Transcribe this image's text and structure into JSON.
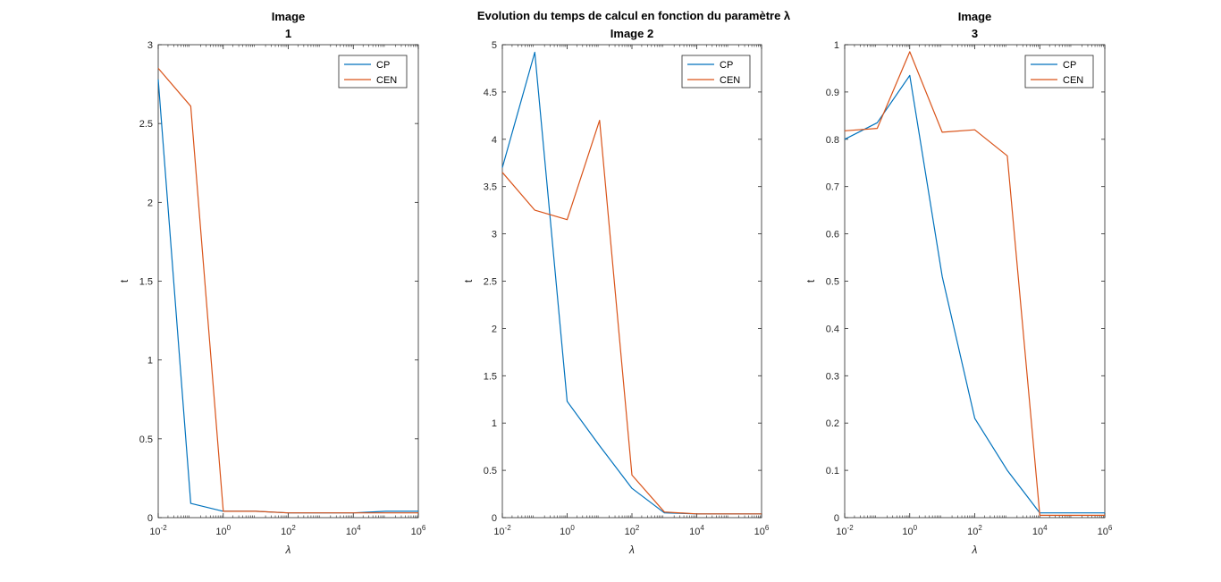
{
  "figure": {
    "suptitle": "Evolution du temps de calcul en fonction du paramètre λ",
    "colors": {
      "CP": "#0072BD",
      "CEN": "#D95319"
    }
  },
  "chart_data": [
    {
      "type": "line",
      "title_lines": [
        "Image",
        "1"
      ],
      "xlabel": "λ",
      "ylabel": "t",
      "xscale": "log",
      "xlim": [
        0.01,
        1000000
      ],
      "ylim": [
        0,
        3
      ],
      "yticks": [
        0,
        0.5,
        1,
        1.5,
        2,
        2.5,
        3
      ],
      "ytick_labels": [
        "0",
        "0.5",
        "1",
        "1.5",
        "2",
        "2.5",
        "3"
      ],
      "xtick_labels": [
        {
          "base": "10",
          "exp": "-2"
        },
        {
          "base": "10",
          "exp": "0"
        },
        {
          "base": "10",
          "exp": "2"
        },
        {
          "base": "10",
          "exp": "4"
        },
        {
          "base": "10",
          "exp": "6"
        }
      ],
      "x": [
        0.01,
        0.1,
        1,
        10,
        100,
        1000,
        10000,
        100000,
        1000000
      ],
      "series": [
        {
          "name": "CP",
          "values": [
            2.78,
            0.09,
            0.04,
            0.04,
            0.03,
            0.03,
            0.03,
            0.04,
            0.04
          ]
        },
        {
          "name": "CEN",
          "values": [
            2.85,
            2.61,
            0.04,
            0.04,
            0.03,
            0.03,
            0.03,
            0.03,
            0.03
          ]
        }
      ],
      "legend": "top-right",
      "grid": false
    },
    {
      "type": "line",
      "title_lines": [
        "Image 2"
      ],
      "xlabel": "λ",
      "ylabel": "t",
      "xscale": "log",
      "xlim": [
        0.01,
        1000000
      ],
      "ylim": [
        0,
        5
      ],
      "yticks": [
        0,
        0.5,
        1,
        1.5,
        2,
        2.5,
        3,
        3.5,
        4,
        4.5,
        5
      ],
      "ytick_labels": [
        "0",
        "0.5",
        "1",
        "1.5",
        "2",
        "2.5",
        "3",
        "3.5",
        "4",
        "4.5",
        "5"
      ],
      "xtick_labels": [
        {
          "base": "10",
          "exp": "-2"
        },
        {
          "base": "10",
          "exp": "0"
        },
        {
          "base": "10",
          "exp": "2"
        },
        {
          "base": "10",
          "exp": "4"
        },
        {
          "base": "10",
          "exp": "6"
        }
      ],
      "x": [
        0.01,
        0.1,
        1,
        10,
        100,
        1000,
        10000,
        100000,
        1000000
      ],
      "series": [
        {
          "name": "CP",
          "values": [
            3.7,
            4.92,
            1.23,
            0.76,
            0.31,
            0.05,
            0.04,
            0.04,
            0.04
          ]
        },
        {
          "name": "CEN",
          "values": [
            3.65,
            3.25,
            3.15,
            4.2,
            0.45,
            0.06,
            0.04,
            0.04,
            0.04
          ]
        }
      ],
      "legend": "top-right",
      "grid": false
    },
    {
      "type": "line",
      "title_lines": [
        "Image",
        "3"
      ],
      "xlabel": "λ",
      "ylabel": "t",
      "xscale": "log",
      "xlim": [
        0.01,
        1000000
      ],
      "ylim": [
        0,
        1
      ],
      "yticks": [
        0,
        0.1,
        0.2,
        0.3,
        0.4,
        0.5,
        0.6,
        0.7,
        0.8,
        0.9,
        1
      ],
      "ytick_labels": [
        "0",
        "0.1",
        "0.2",
        "0.3",
        "0.4",
        "0.5",
        "0.6",
        "0.7",
        "0.8",
        "0.9",
        "1"
      ],
      "xtick_labels": [
        {
          "base": "10",
          "exp": "-2"
        },
        {
          "base": "10",
          "exp": "0"
        },
        {
          "base": "10",
          "exp": "2"
        },
        {
          "base": "10",
          "exp": "4"
        },
        {
          "base": "10",
          "exp": "6"
        }
      ],
      "x": [
        0.01,
        0.1,
        1,
        10,
        100,
        1000,
        10000,
        100000,
        1000000
      ],
      "series": [
        {
          "name": "CP",
          "values": [
            0.8,
            0.835,
            0.935,
            0.51,
            0.21,
            0.1,
            0.01,
            0.01,
            0.01
          ]
        },
        {
          "name": "CEN",
          "values": [
            0.818,
            0.823,
            0.985,
            0.815,
            0.82,
            0.765,
            0.005,
            0.005,
            0.005
          ]
        }
      ],
      "legend": "top-right",
      "grid": false
    }
  ]
}
